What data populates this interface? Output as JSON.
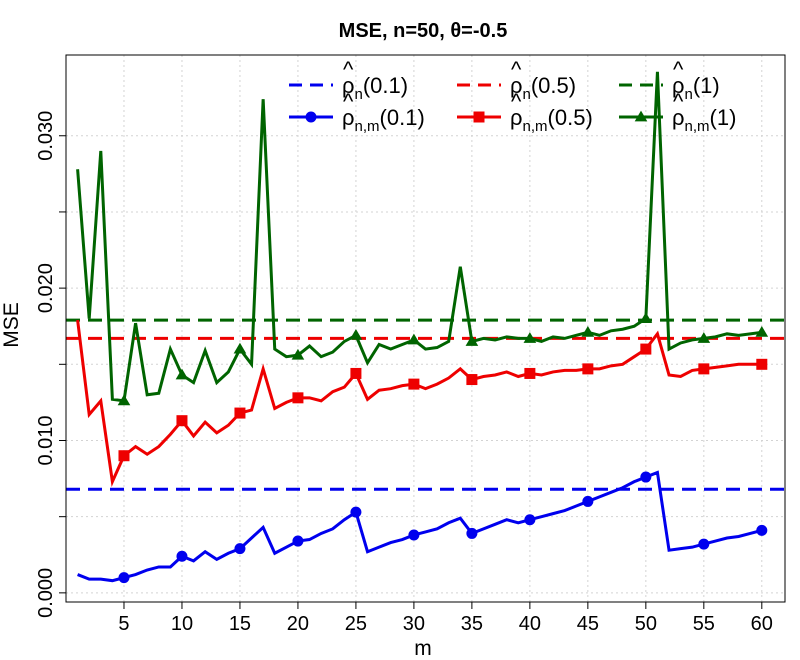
{
  "chart_data": {
    "type": "line",
    "title": "MSE, n=50, θ=-0.5",
    "xlabel": "m",
    "ylabel": "MSE",
    "xlim": [
      0,
      62
    ],
    "ylim": [
      -0.0006,
      0.0353
    ],
    "x_ticks": [
      5,
      10,
      15,
      20,
      25,
      30,
      35,
      40,
      45,
      50,
      55,
      60
    ],
    "x_tick_labels": [
      "5",
      "10",
      "15",
      "20",
      "25",
      "30",
      "35",
      "40",
      "45",
      "50",
      "55",
      "60"
    ],
    "y_ticks": [
      0.0,
      0.01,
      0.02,
      0.03
    ],
    "y_tick_labels": [
      "0.000",
      "0.010",
      "0.020",
      "0.030"
    ],
    "y_minor_ticks": [
      0.005,
      0.015,
      0.025
    ],
    "grid": true,
    "legend_position": "top-right",
    "x": [
      1,
      2,
      3,
      4,
      5,
      6,
      7,
      8,
      9,
      10,
      11,
      12,
      13,
      14,
      15,
      16,
      17,
      18,
      19,
      20,
      21,
      22,
      23,
      24,
      25,
      26,
      27,
      28,
      29,
      30,
      31,
      32,
      33,
      34,
      35,
      36,
      37,
      38,
      39,
      40,
      41,
      42,
      43,
      44,
      45,
      46,
      47,
      48,
      49,
      50,
      51,
      52,
      53,
      54,
      55,
      56,
      57,
      58,
      59,
      60
    ],
    "series": [
      {
        "name": "ρ̂n(0.1)",
        "name_base": "ρ",
        "name_sub": "n",
        "name_arg": "(0.1)",
        "kind": "reference",
        "color": "#0000ee",
        "value": 0.0068
      },
      {
        "name": "ρ̂n(0.5)",
        "name_base": "ρ",
        "name_sub": "n",
        "name_arg": "(0.5)",
        "kind": "reference",
        "color": "#ee0000",
        "value": 0.0167
      },
      {
        "name": "ρ̂n(1)",
        "name_base": "ρ",
        "name_sub": "n",
        "name_arg": "(1)",
        "kind": "reference",
        "color": "#006400",
        "value": 0.0179
      },
      {
        "name": "ρ̂n,m(0.1)",
        "name_base": "ρ",
        "name_sub": "n,m",
        "name_arg": "(0.1)",
        "kind": "series",
        "color": "#0000ee",
        "marker": "circle",
        "values": [
          0.0012,
          0.0009,
          0.0009,
          0.0008,
          0.001,
          0.0012,
          0.0015,
          0.0017,
          0.0017,
          0.0024,
          0.0021,
          0.0027,
          0.0022,
          0.0026,
          0.0029,
          0.0036,
          0.0043,
          0.0026,
          0.003,
          0.0034,
          0.0035,
          0.0039,
          0.0042,
          0.0048,
          0.0053,
          0.0027,
          0.003,
          0.0033,
          0.0035,
          0.0038,
          0.004,
          0.0042,
          0.0046,
          0.0049,
          0.0039,
          0.0042,
          0.0045,
          0.0048,
          0.0046,
          0.0048,
          0.005,
          0.0052,
          0.0054,
          0.0057,
          0.006,
          0.0063,
          0.0066,
          0.0069,
          0.0073,
          0.0076,
          0.0079,
          0.0028,
          0.0029,
          0.003,
          0.0032,
          0.0034,
          0.0036,
          0.0037,
          0.0039,
          0.0041
        ]
      },
      {
        "name": "ρ̂n,m(0.5)",
        "name_base": "ρ",
        "name_sub": "n,m",
        "name_arg": "(0.5)",
        "kind": "series",
        "color": "#ee0000",
        "marker": "square",
        "values": [
          0.0179,
          0.0117,
          0.0126,
          0.0073,
          0.009,
          0.0096,
          0.0091,
          0.0096,
          0.0104,
          0.0113,
          0.0103,
          0.0112,
          0.0105,
          0.011,
          0.0118,
          0.012,
          0.0147,
          0.0121,
          0.0125,
          0.0128,
          0.0128,
          0.0126,
          0.0132,
          0.0135,
          0.0144,
          0.0127,
          0.0133,
          0.0134,
          0.0136,
          0.0137,
          0.0134,
          0.0137,
          0.0141,
          0.0147,
          0.014,
          0.0142,
          0.0143,
          0.0145,
          0.0142,
          0.0144,
          0.0143,
          0.0145,
          0.0146,
          0.0146,
          0.0147,
          0.0147,
          0.0149,
          0.015,
          0.0155,
          0.016,
          0.017,
          0.0143,
          0.0142,
          0.0146,
          0.0147,
          0.0148,
          0.0149,
          0.015,
          0.015,
          0.015
        ]
      },
      {
        "name": "ρ̂n,m(1)",
        "name_base": "ρ",
        "name_sub": "n,m",
        "name_arg": "(1)",
        "kind": "series",
        "color": "#006400",
        "marker": "triangle",
        "values": [
          0.0278,
          0.018,
          0.029,
          0.0127,
          0.0126,
          0.0177,
          0.013,
          0.0131,
          0.016,
          0.0143,
          0.0138,
          0.0159,
          0.0138,
          0.0145,
          0.016,
          0.015,
          0.0324,
          0.016,
          0.0155,
          0.0156,
          0.0162,
          0.0155,
          0.0158,
          0.0165,
          0.0169,
          0.0151,
          0.0163,
          0.016,
          0.0163,
          0.0166,
          0.016,
          0.0161,
          0.0165,
          0.0214,
          0.0165,
          0.0167,
          0.0166,
          0.0168,
          0.0167,
          0.0167,
          0.0165,
          0.0168,
          0.0167,
          0.0169,
          0.0171,
          0.0169,
          0.0172,
          0.0173,
          0.0175,
          0.018,
          0.0342,
          0.016,
          0.0164,
          0.0166,
          0.0167,
          0.0168,
          0.017,
          0.0169,
          0.017,
          0.0171
        ]
      }
    ]
  }
}
